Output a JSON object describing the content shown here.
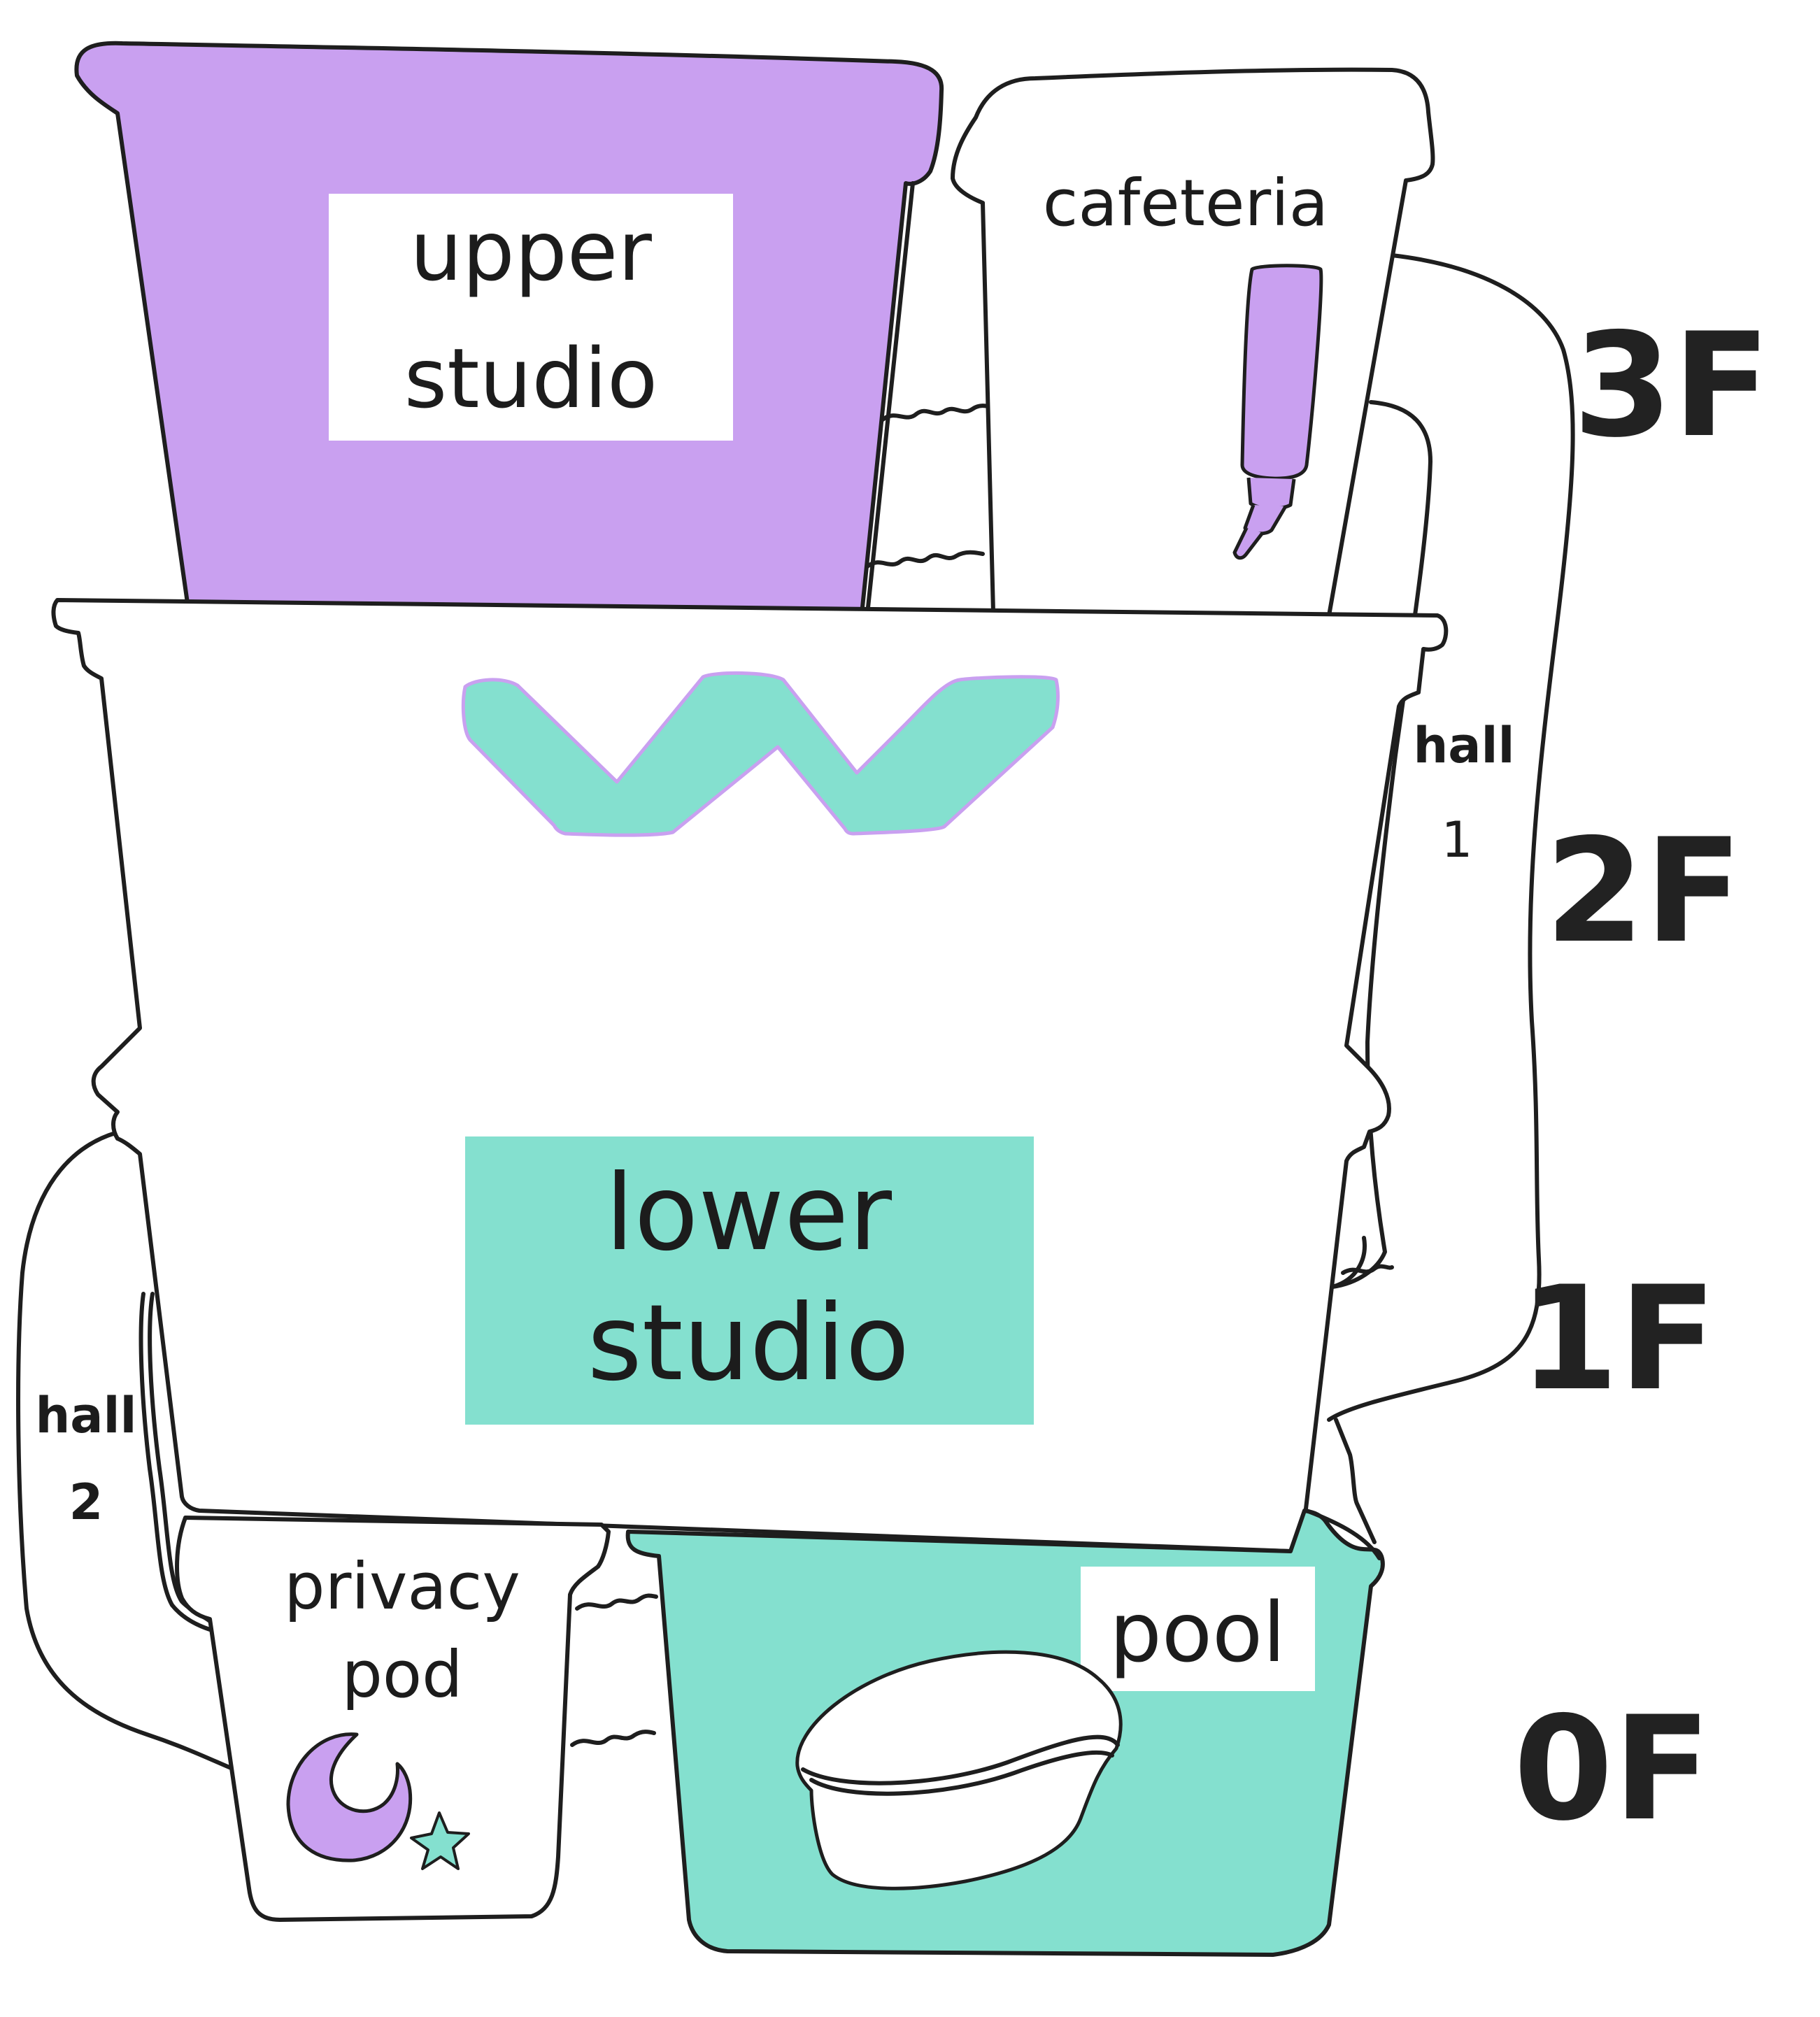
{
  "colors": {
    "purple": "#c9a0f0",
    "teal": "#84e0cf",
    "ink": "#1e1e1e",
    "paper": "#ffffff"
  },
  "containers": {
    "upper_studio": {
      "label_line1": "upper",
      "label_line2": "studio",
      "color": "#c9a0f0"
    },
    "cafeteria": {
      "label": "cafeteria",
      "icon": "glue-stick-icon"
    },
    "lower_studio": {
      "label_line1": "lower",
      "label_line2": "studio",
      "color": "#84e0cf",
      "decoration": "zigzag-icon"
    },
    "privacy_pod": {
      "label_line1": "privacy",
      "label_line2": "pod",
      "icons": [
        "moon-icon",
        "star-icon"
      ]
    },
    "pool": {
      "label": "pool",
      "color": "#84e0cf",
      "icon": "pool-tub-icon"
    }
  },
  "halls": {
    "hall_1": {
      "line1": "hall",
      "line2": "1"
    },
    "hall_2": {
      "line1": "hall",
      "line2": "2"
    }
  },
  "floors": [
    "3F",
    "2F",
    "1F",
    "0F"
  ]
}
